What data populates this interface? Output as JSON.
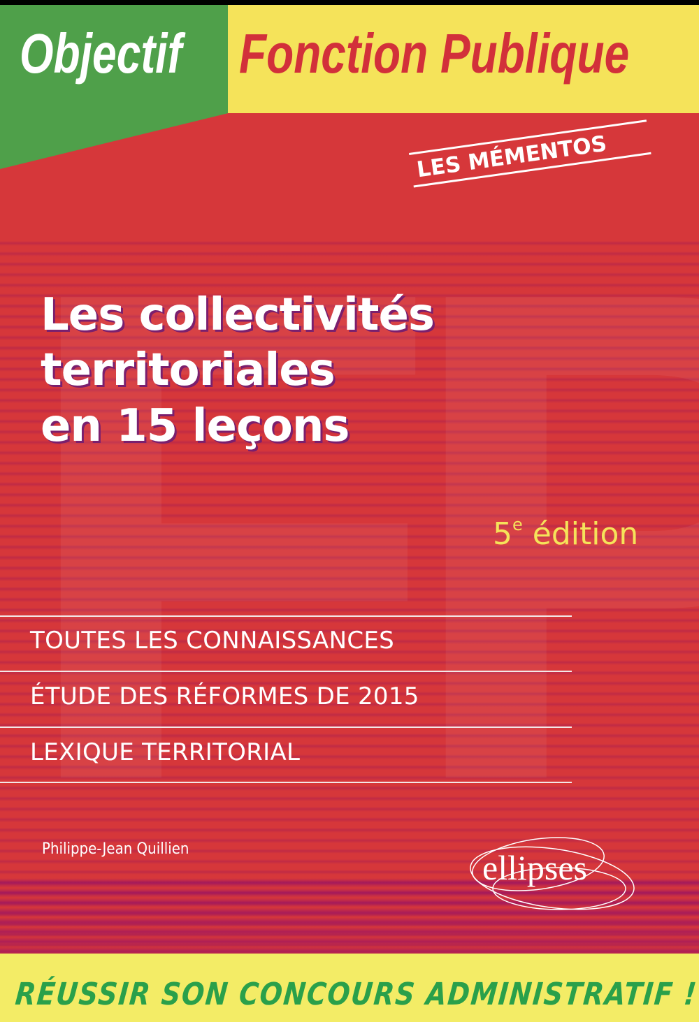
{
  "series": {
    "prefix": "Objectif",
    "name": "Fonction Publique",
    "collection": "LES MÉMENTOS"
  },
  "book": {
    "title_lines": [
      "Les collectivités",
      "territoriales",
      "en 15 leçons"
    ],
    "edition_number": "5",
    "edition_suffix": "e",
    "edition_label": "édition",
    "features": [
      "TOUTES LES CONNAISSANCES",
      "ÉTUDE DES RÉFORMES DE 2015",
      "LEXIQUE TERRITORIAL"
    ],
    "author": "Philippe-Jean Quillien",
    "publisher": "ellipses",
    "slogan": "RÉUSSIR SON CONCOURS ADMINISTRATIF !"
  },
  "colors": {
    "red": "#d6373a",
    "yellow": "#f5e35a",
    "green": "#4fa04a",
    "slogan_green": "#2aa04a"
  }
}
